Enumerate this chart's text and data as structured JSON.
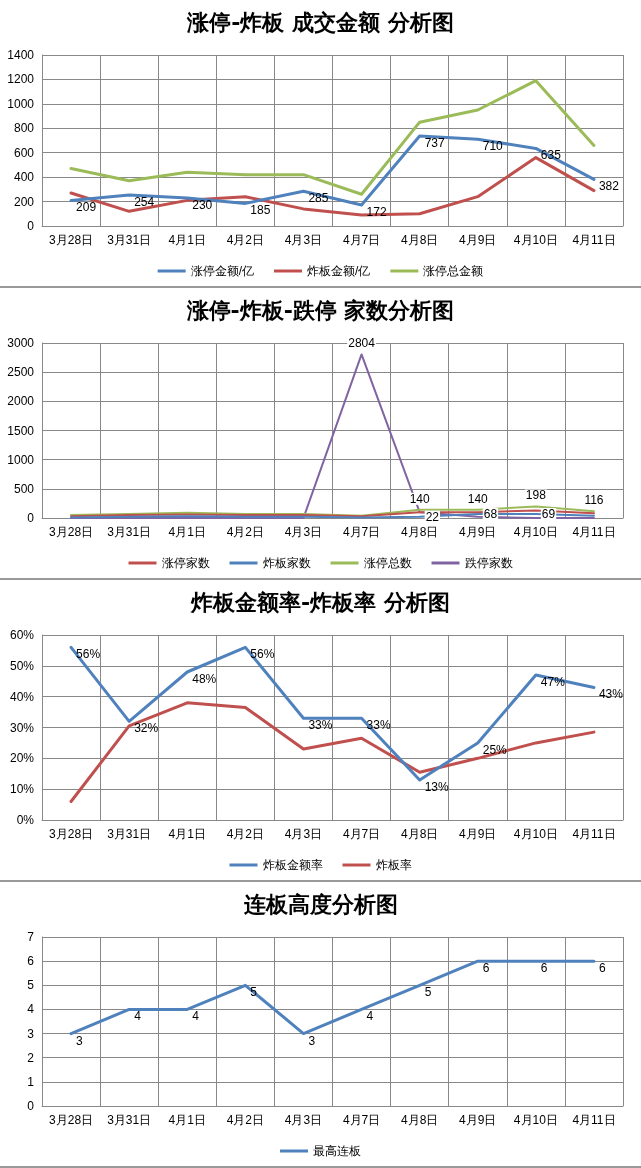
{
  "chart_data": [
    {
      "type": "line",
      "title": "涨停-炸板 成交金额 分析图",
      "categories": [
        "3月28日",
        "3月31日",
        "4月1日",
        "4月2日",
        "4月3日",
        "4月7日",
        "4月8日",
        "4月9日",
        "4月10日",
        "4月11日"
      ],
      "ylim": [
        0,
        1400
      ],
      "yticks": [
        0,
        200,
        400,
        600,
        800,
        1000,
        1200,
        1400
      ],
      "grid": true,
      "legend": "bottom",
      "marker": "none",
      "line_style": "solid",
      "series": [
        {
          "name": "涨停金额/亿",
          "color": "#4f81bd",
          "values": [
            209,
            254,
            230,
            185,
            285,
            172,
            737,
            710,
            635,
            382
          ],
          "value_labels": [
            "209",
            "254",
            "230",
            "185",
            "285",
            "172",
            "737",
            "710",
            "635",
            "382"
          ]
        },
        {
          "name": "炸板金额/亿",
          "color": "#c0504d",
          "values": [
            270,
            120,
            210,
            240,
            140,
            90,
            100,
            240,
            560,
            290
          ]
        },
        {
          "name": "涨停总金额",
          "color": "#9bbb59",
          "values": [
            470,
            370,
            440,
            420,
            420,
            260,
            850,
            950,
            1190,
            660
          ]
        }
      ]
    },
    {
      "type": "line",
      "title": "涨停-炸板-跌停 家数分析图",
      "categories": [
        "3月28日",
        "3月31日",
        "4月1日",
        "4月2日",
        "4月3日",
        "4月7日",
        "4月8日",
        "4月9日",
        "4月10日",
        "4月11日"
      ],
      "ylim": [
        0,
        3000
      ],
      "yticks": [
        0,
        500,
        1000,
        1500,
        2000,
        2500,
        3000
      ],
      "grid": true,
      "legend": "bottom",
      "marker": "none",
      "line_style": "solid",
      "series": [
        {
          "name": "涨停家数",
          "color": "#c0504d",
          "values": [
            30,
            50,
            60,
            50,
            50,
            30,
            100,
            100,
            130,
            80
          ]
        },
        {
          "name": "炸板家数",
          "color": "#4f81bd",
          "values": [
            10,
            20,
            30,
            20,
            20,
            10,
            22,
            68,
            69,
            40
          ],
          "value_labels": [
            null,
            null,
            null,
            null,
            null,
            null,
            "22",
            "68",
            "69",
            null
          ]
        },
        {
          "name": "涨停总数",
          "color": "#9bbb59",
          "values": [
            50,
            70,
            90,
            70,
            70,
            40,
            140,
            140,
            198,
            116
          ],
          "value_labels": [
            null,
            null,
            null,
            null,
            null,
            null,
            "140",
            "140",
            "198",
            "116"
          ]
        },
        {
          "name": "跌停家数",
          "color": "#8064a2",
          "values": [
            0,
            0,
            0,
            0,
            0,
            2804,
            100,
            20,
            0,
            0
          ],
          "value_labels": [
            null,
            null,
            null,
            null,
            null,
            "2804",
            null,
            null,
            null,
            null
          ]
        }
      ]
    },
    {
      "type": "line",
      "title": "炸板金额率-炸板率 分析图",
      "categories": [
        "3月28日",
        "3月31日",
        "4月1日",
        "4月2日",
        "4月3日",
        "4月7日",
        "4月8日",
        "4月9日",
        "4月10日",
        "4月11日"
      ],
      "ylim": [
        0,
        60
      ],
      "yticks": [
        {
          "value": 0,
          "label": "0%"
        },
        {
          "value": 10,
          "label": "10%"
        },
        {
          "value": 20,
          "label": "20%"
        },
        {
          "value": 30,
          "label": "30%"
        },
        {
          "value": 40,
          "label": "40%"
        },
        {
          "value": 50,
          "label": "50%"
        },
        {
          "value": 60,
          "label": "60%"
        }
      ],
      "grid": true,
      "legend": "bottom",
      "marker": "none",
      "line_style": "solid",
      "series": [
        {
          "name": "炸板金额率",
          "color": "#4f81bd",
          "values": [
            56,
            32,
            48,
            56,
            33,
            33,
            13,
            25,
            47,
            43
          ],
          "value_labels": [
            "56%",
            "32%",
            "48%",
            "56%",
            "33%",
            "33%",
            "13%",
            "25%",
            "47%",
            "43%"
          ]
        },
        {
          "name": "炸板率",
          "color": "#c0504d",
          "values": [
            6,
            30.5,
            38,
            36.5,
            23,
            26.5,
            15.5,
            20,
            25,
            28.5
          ]
        }
      ]
    },
    {
      "type": "line",
      "title": "连板高度分析图",
      "categories": [
        "3月28日",
        "3月31日",
        "4月1日",
        "4月2日",
        "4月3日",
        "4月7日",
        "4月8日",
        "4月9日",
        "4月10日",
        "4月11日"
      ],
      "ylim": [
        0,
        7
      ],
      "yticks": [
        0,
        1,
        2,
        3,
        4,
        5,
        6,
        7
      ],
      "grid": true,
      "legend": "bottom",
      "marker": "none",
      "line_style": "solid",
      "data_labels": true,
      "series": [
        {
          "name": "最高连板",
          "color": "#4f81bd",
          "values": [
            3,
            4,
            4,
            5,
            3,
            4,
            5,
            6,
            6,
            6
          ]
        }
      ]
    }
  ]
}
